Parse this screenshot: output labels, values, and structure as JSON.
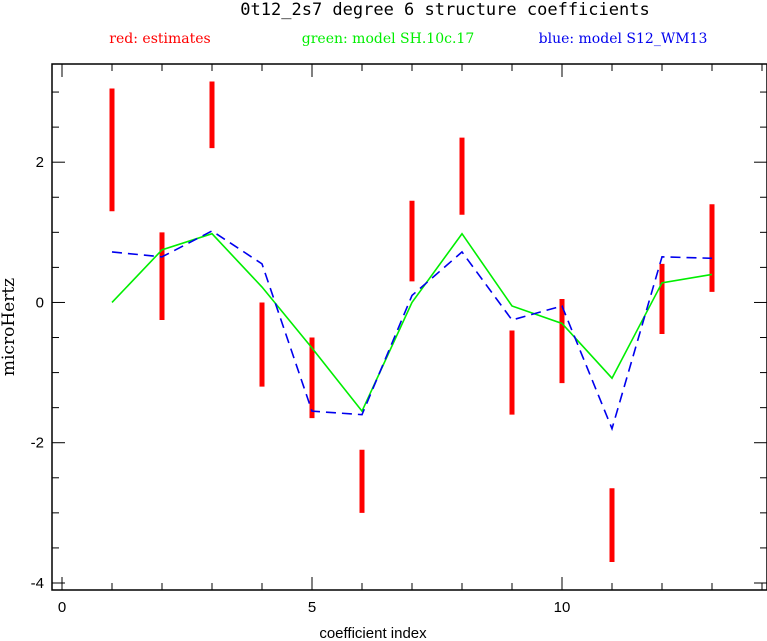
{
  "chart_data": {
    "type": "line",
    "title": "0t12_2s7 degree 6 structure coefficients",
    "xlabel": "coefficient index",
    "ylabel": "microHertz",
    "xlim": [
      -0.2,
      14.1
    ],
    "ylim": [
      -4.1,
      3.4
    ],
    "x_ticks": [
      0,
      5,
      10
    ],
    "y_ticks": [
      -4,
      -2,
      0,
      2
    ],
    "x_minor_step": 1,
    "y_minor_step": 0.5,
    "grid": false,
    "legend_position": "top",
    "legend": [
      {
        "label": "red: estimates",
        "color": "#ff0000"
      },
      {
        "label": "green: model SH.10c.17",
        "color": "#00ee00"
      },
      {
        "label": "blue: model S12_WM13",
        "color": "#0000ee"
      }
    ],
    "series": [
      {
        "kind": "error-bar",
        "color": "#ff0000",
        "x": [
          1,
          2,
          3,
          4,
          5,
          6,
          7,
          8,
          9,
          10,
          11,
          12,
          13
        ],
        "low": [
          1.3,
          -0.25,
          2.2,
          -1.2,
          -1.65,
          -3.0,
          0.3,
          1.25,
          -1.6,
          -1.15,
          -3.7,
          -0.45,
          0.15
        ],
        "high": [
          3.05,
          1.0,
          3.15,
          0.0,
          -0.5,
          -2.1,
          1.45,
          2.35,
          -0.4,
          0.05,
          -2.65,
          0.55,
          1.4
        ]
      },
      {
        "kind": "line",
        "color": "#00ee00",
        "dash": false,
        "x": [
          1,
          2,
          3,
          4,
          5,
          6,
          7,
          8,
          9,
          10,
          11,
          12,
          13
        ],
        "values": [
          0.0,
          0.75,
          0.98,
          0.22,
          -0.65,
          -1.55,
          0.0,
          0.98,
          -0.05,
          -0.3,
          -1.08,
          0.28,
          0.4
        ]
      },
      {
        "kind": "line",
        "color": "#0000ee",
        "dash": true,
        "x": [
          1,
          2,
          3,
          4,
          5,
          6,
          7,
          8,
          9,
          10,
          11,
          12,
          13
        ],
        "values": [
          0.72,
          0.65,
          1.02,
          0.55,
          -1.55,
          -1.6,
          0.1,
          0.72,
          -0.25,
          -0.05,
          -1.8,
          0.65,
          0.63
        ]
      }
    ]
  }
}
